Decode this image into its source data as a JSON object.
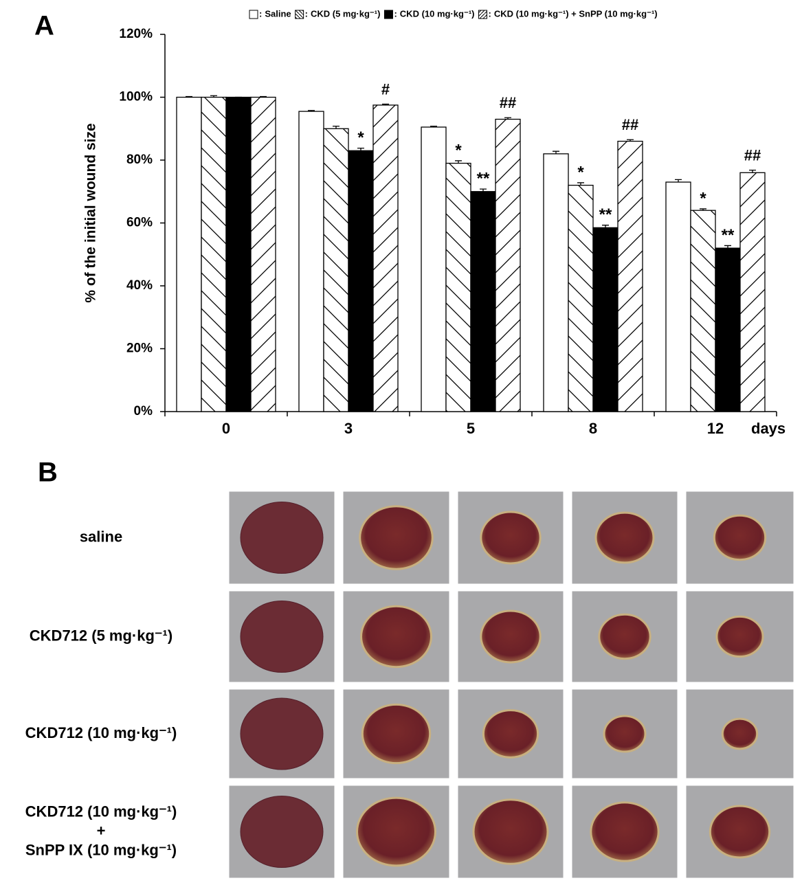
{
  "panels": [
    "A",
    "B"
  ],
  "chart_data": {
    "type": "bar",
    "ylabel": "% of the initial wound size",
    "xlabel": "days",
    "categories": [
      "0",
      "3",
      "5",
      "8",
      "12"
    ],
    "ylim": [
      0,
      120
    ],
    "yticks": [
      {
        "value": 0,
        "label": "0%"
      },
      {
        "value": 20,
        "label": "20%"
      },
      {
        "value": 40,
        "label": "40%"
      },
      {
        "value": 60,
        "label": "60%"
      },
      {
        "value": 80,
        "label": "80%"
      },
      {
        "value": 100,
        "label": "100%"
      },
      {
        "value": 120,
        "label": "120%"
      }
    ],
    "legend_separator": ":",
    "series": [
      {
        "name": "Saline",
        "color": "#ffffff",
        "pattern": "none",
        "values": [
          100,
          95.5,
          90.5,
          82,
          73
        ],
        "errors": [
          0.2,
          0.3,
          0.3,
          0.8,
          0.8
        ],
        "significance": [
          null,
          null,
          null,
          null,
          null
        ]
      },
      {
        "name": "CKD (5 mg·kg⁻¹)",
        "color": "#ffffff",
        "pattern": "backslash",
        "values": [
          100,
          90,
          79,
          72,
          64
        ],
        "errors": [
          0.5,
          0.8,
          0.8,
          0.8,
          0.5
        ],
        "significance": [
          null,
          null,
          "*",
          "*",
          "*"
        ]
      },
      {
        "name": "CKD (10 mg·kg⁻¹)",
        "color": "#000000",
        "pattern": "solid",
        "values": [
          100,
          83,
          70,
          58.5,
          52
        ],
        "errors": [
          0,
          0.8,
          0.8,
          0.8,
          0.8
        ],
        "significance": [
          null,
          "*",
          "**",
          "**",
          "**"
        ]
      },
      {
        "name": "CKD (10 mg·kg⁻¹) + SnPP (10 mg·kg⁻¹)",
        "color": "#ffffff",
        "pattern": "slash",
        "values": [
          100,
          97.5,
          93,
          86,
          76
        ],
        "errors": [
          0.2,
          0.3,
          0.5,
          0.5,
          0.8
        ],
        "significance": [
          null,
          "#",
          "##",
          "##",
          "##"
        ]
      }
    ]
  },
  "photo_panel": {
    "rows": [
      [
        "saline"
      ],
      [
        "CKD712 (5 mg·kg⁻¹)"
      ],
      [
        "CKD712 (10 mg·kg⁻¹)"
      ],
      [
        "CKD712 (10 mg·kg⁻¹)",
        "+",
        "SnPP IX (10 mg·kg⁻¹)"
      ]
    ]
  }
}
